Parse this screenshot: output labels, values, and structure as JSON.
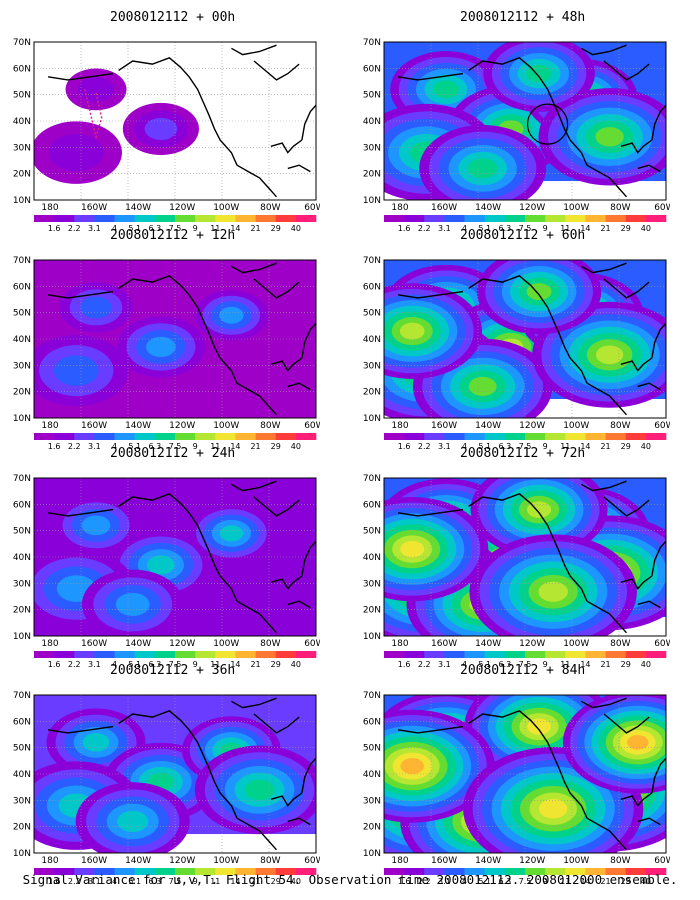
{
  "panels": [
    {
      "title": "2008012112 + 00h",
      "col": 0,
      "row": 0,
      "intensity": 0,
      "circle": false,
      "track": true
    },
    {
      "title": "2008012112 + 48h",
      "col": 1,
      "row": 0,
      "intensity": 4,
      "circle": true,
      "track": false
    },
    {
      "title": "2008012112 + 12h",
      "col": 0,
      "row": 1,
      "intensity": 1,
      "circle": false,
      "track": false
    },
    {
      "title": "2008012112 + 60h",
      "col": 1,
      "row": 1,
      "intensity": 5,
      "circle": false,
      "track": false
    },
    {
      "title": "2008012112 + 24h",
      "col": 0,
      "row": 2,
      "intensity": 2,
      "circle": false,
      "track": false
    },
    {
      "title": "2008012112 + 72h",
      "col": 1,
      "row": 2,
      "intensity": 6,
      "circle": false,
      "track": false
    },
    {
      "title": "2008012112 + 36h",
      "col": 0,
      "row": 3,
      "intensity": 3,
      "circle": false,
      "track": false
    },
    {
      "title": "2008012112 + 84h",
      "col": 1,
      "row": 3,
      "intensity": 7,
      "circle": false,
      "track": false
    }
  ],
  "lat_labels": [
    "70N",
    "60N",
    "50N",
    "40N",
    "30N",
    "20N",
    "10N"
  ],
  "lon_labels": [
    "180",
    "160W",
    "140W",
    "120W",
    "100W",
    "80W",
    "60W"
  ],
  "colorbar": {
    "labels": [
      "1.6",
      "2.2",
      "3.1",
      "4",
      "5.1",
      "6.3",
      "7.5",
      "9",
      "11",
      "14",
      "21",
      "29",
      "40"
    ],
    "colors": [
      "#9e00c8",
      "#8a00d8",
      "#6a3cff",
      "#2a5cff",
      "#1e96ff",
      "#00c8c8",
      "#00d28c",
      "#64dc32",
      "#b4e632",
      "#f0e632",
      "#ffb432",
      "#ff7832",
      "#ff3c3c",
      "#ff1e78"
    ]
  },
  "footer": "Signal Variance for u,v,T. Flight 54. Observation time 2008012112. 2008012000 ensemble."
}
